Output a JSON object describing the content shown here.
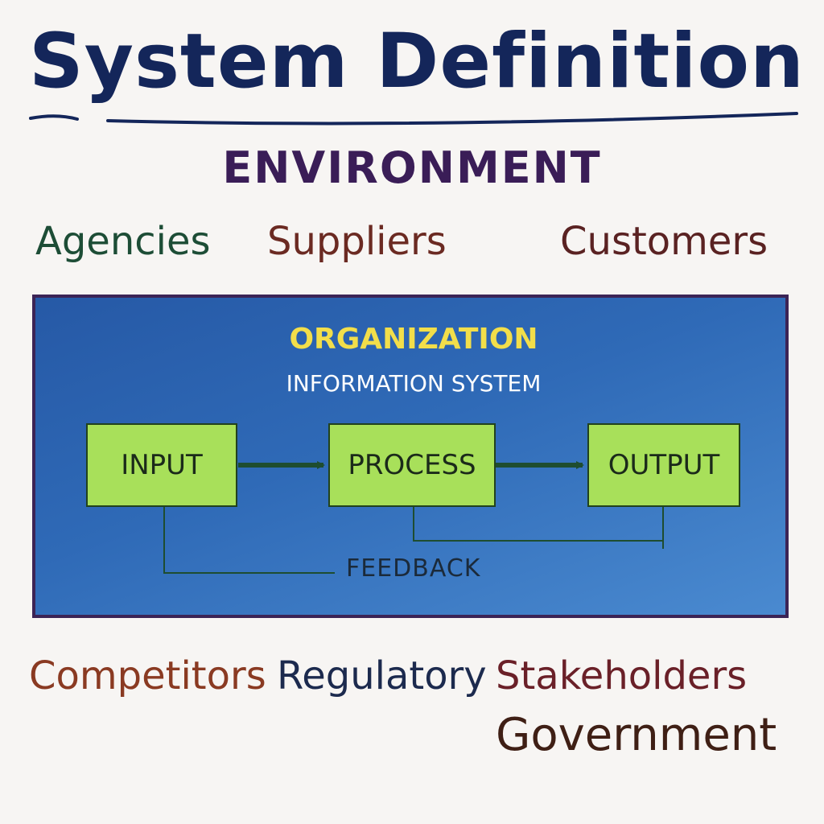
{
  "title": "System Definition",
  "environment": {
    "title": "ENVIRONMENT",
    "top_items": [
      "Agencies",
      "Suppliers",
      "Customers"
    ],
    "bottom_items": [
      "Competitors",
      "Regulatory",
      "Stakeholders",
      "Government"
    ]
  },
  "organization": {
    "title": "ORGANIZATION",
    "subtitle": "INFORMATION SYSTEM",
    "steps": [
      "INPUT",
      "PROCESS",
      "OUTPUT"
    ],
    "feedback_label": "FEEDBACK"
  },
  "colors": {
    "title": "#14265a",
    "environment_title": "#3a1d57",
    "agencies": "#1d4d36",
    "suppliers": "#6b2a22",
    "customers": "#5a2222",
    "competitors": "#8a3a22",
    "regulatory": "#1c2a4e",
    "stakeholders": "#6a2028",
    "government": "#3f1f15",
    "organization_fill": "#2f6ab7",
    "organization_title": "#f2de4a",
    "step_fill": "#a8e05a",
    "connector": "#1e4d30"
  }
}
